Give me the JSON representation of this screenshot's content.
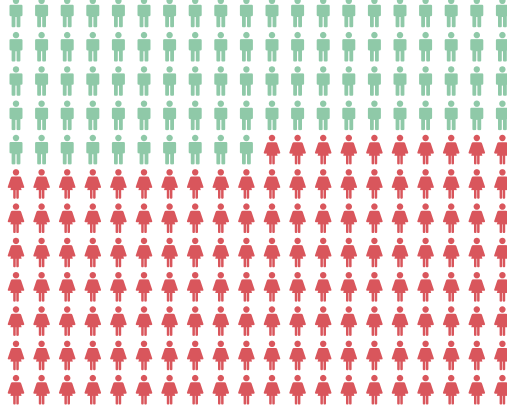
{
  "chart_data": {
    "type": "pictograph",
    "title": "",
    "unit_count_total": 240,
    "grid": {
      "columns": 20,
      "rows": 12
    },
    "series": [
      {
        "icon": "male-person-icon",
        "color": "#8fc9a8",
        "count": 90
      },
      {
        "icon": "female-person-icon",
        "color": "#d9565c",
        "count": 150
      }
    ],
    "legend": false,
    "axes": false
  }
}
